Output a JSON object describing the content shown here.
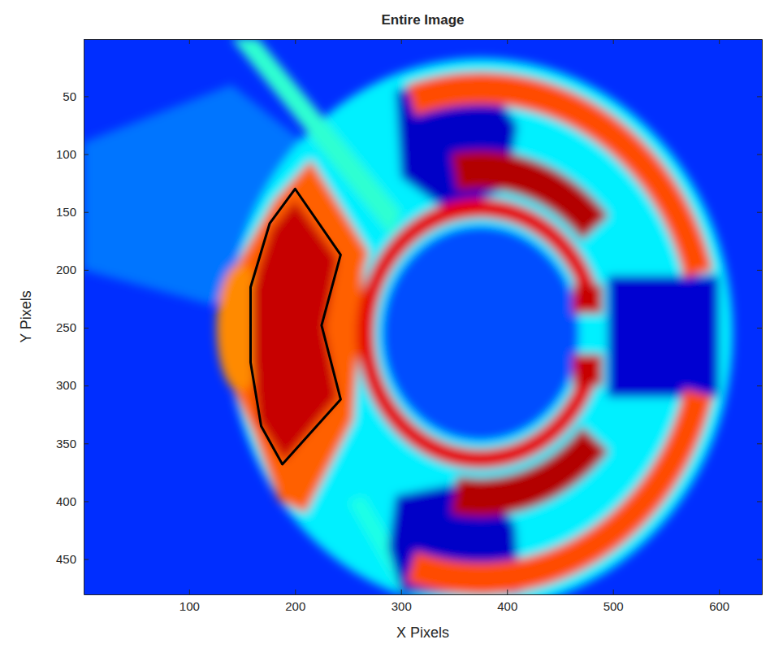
{
  "chart_data": {
    "type": "image",
    "title": "Entire Image",
    "x_label": "X Pixels",
    "y_label": "Y Pixels",
    "xlim": [
      0.5,
      640.5
    ],
    "ylim": [
      0.5,
      480.5
    ],
    "xticks": [
      100,
      200,
      300,
      400,
      500,
      600
    ],
    "yticks": [
      50,
      100,
      150,
      200,
      250,
      300,
      350,
      400,
      450
    ],
    "color": "jet",
    "clim": [
      0,
      1
    ],
    "regions": [
      {
        "shape": "rect",
        "x": [
          0.5,
          640.5
        ],
        "y": [
          0.5,
          480.5
        ],
        "value": 0.17
      },
      {
        "shape": "polygon",
        "x": [
          0,
          140,
          250,
          230,
          120,
          0
        ],
        "y": [
          90,
          40,
          120,
          200,
          230,
          200
        ],
        "value": 0.24
      },
      {
        "shape": "ellipse",
        "center": [
          375,
          255
        ],
        "radius": [
          238,
          238
        ],
        "value": 0.36
      },
      {
        "shape": "polygon",
        "x": [
          140,
          165,
          300,
          290
        ],
        "y": [
          0,
          0,
          150,
          170
        ],
        "value": 0.42
      },
      {
        "shape": "polygon",
        "x": [
          250,
          265,
          320,
          300
        ],
        "y": [
          400,
          395,
          480,
          480
        ],
        "value": 0.4
      },
      {
        "shape": "polygon",
        "x": [
          295,
          375,
          410,
          400,
          345,
          300
        ],
        "y": [
          45,
          30,
          75,
          130,
          150,
          120
        ],
        "value": 0.07
      },
      {
        "shape": "polygon",
        "x": [
          295,
          370,
          408,
          412,
          300,
          288
        ],
        "y": [
          395,
          382,
          420,
          480,
          480,
          440
        ],
        "value": 0.07
      },
      {
        "shape": "rect",
        "x": [
          495,
          600
        ],
        "y": [
          205,
          310
        ],
        "value": 0.08
      },
      {
        "shape": "ellipse",
        "center": [
          375,
          255
        ],
        "radius": [
          93,
          93
        ],
        "value": 0.2
      },
      {
        "shape": "polygon",
        "x": [
          215,
          270,
          265,
          255,
          210,
          185,
          160,
          140,
          130,
          145,
          180
        ],
        "y": [
          105,
          185,
          200,
          330,
          410,
          400,
          340,
          300,
          250,
          195,
          140
        ],
        "value": 0.78
      },
      {
        "shape": "ellipse",
        "center": [
          148,
          250
        ],
        "radius": [
          22,
          55
        ],
        "value": 0.74
      },
      {
        "shape": "polygon",
        "x": [
          200,
          240,
          228,
          240,
          190,
          165,
          160,
          160,
          178
        ],
        "y": [
          140,
          190,
          250,
          310,
          365,
          330,
          280,
          215,
          165
        ],
        "value": 0.93
      },
      {
        "shape": "arc",
        "center": [
          375,
          255
        ],
        "radius": [
          198,
          226
        ],
        "angle": [
          -108,
          -14
        ],
        "value": 0.8
      },
      {
        "shape": "arc",
        "center": [
          375,
          255
        ],
        "radius": [
          198,
          226
        ],
        "angle": [
          14,
          108
        ],
        "value": 0.8
      },
      {
        "shape": "arc",
        "center": [
          375,
          255
        ],
        "radius": [
          125,
          158
        ],
        "angle": [
          -100,
          -40
        ],
        "value": 0.95
      },
      {
        "shape": "arc",
        "center": [
          375,
          255
        ],
        "radius": [
          125,
          158
        ],
        "angle": [
          40,
          100
        ],
        "value": 0.95
      },
      {
        "shape": "arc",
        "center": [
          375,
          255
        ],
        "radius": [
          100,
          117
        ],
        "angle": [
          10,
          350
        ],
        "value": 0.9
      },
      {
        "shape": "rect",
        "x": [
          462,
          490
        ],
        "y": [
          213,
          238
        ],
        "value": 0.93
      },
      {
        "shape": "rect",
        "x": [
          462,
          490
        ],
        "y": [
          273,
          300
        ],
        "value": 0.93
      }
    ],
    "polygon": {
      "x": [
        200,
        243,
        225,
        243,
        188,
        168,
        158,
        158,
        176
      ],
      "y": [
        130,
        187,
        248,
        312,
        368,
        335,
        280,
        215,
        160
      ],
      "color": "#000000"
    }
  }
}
